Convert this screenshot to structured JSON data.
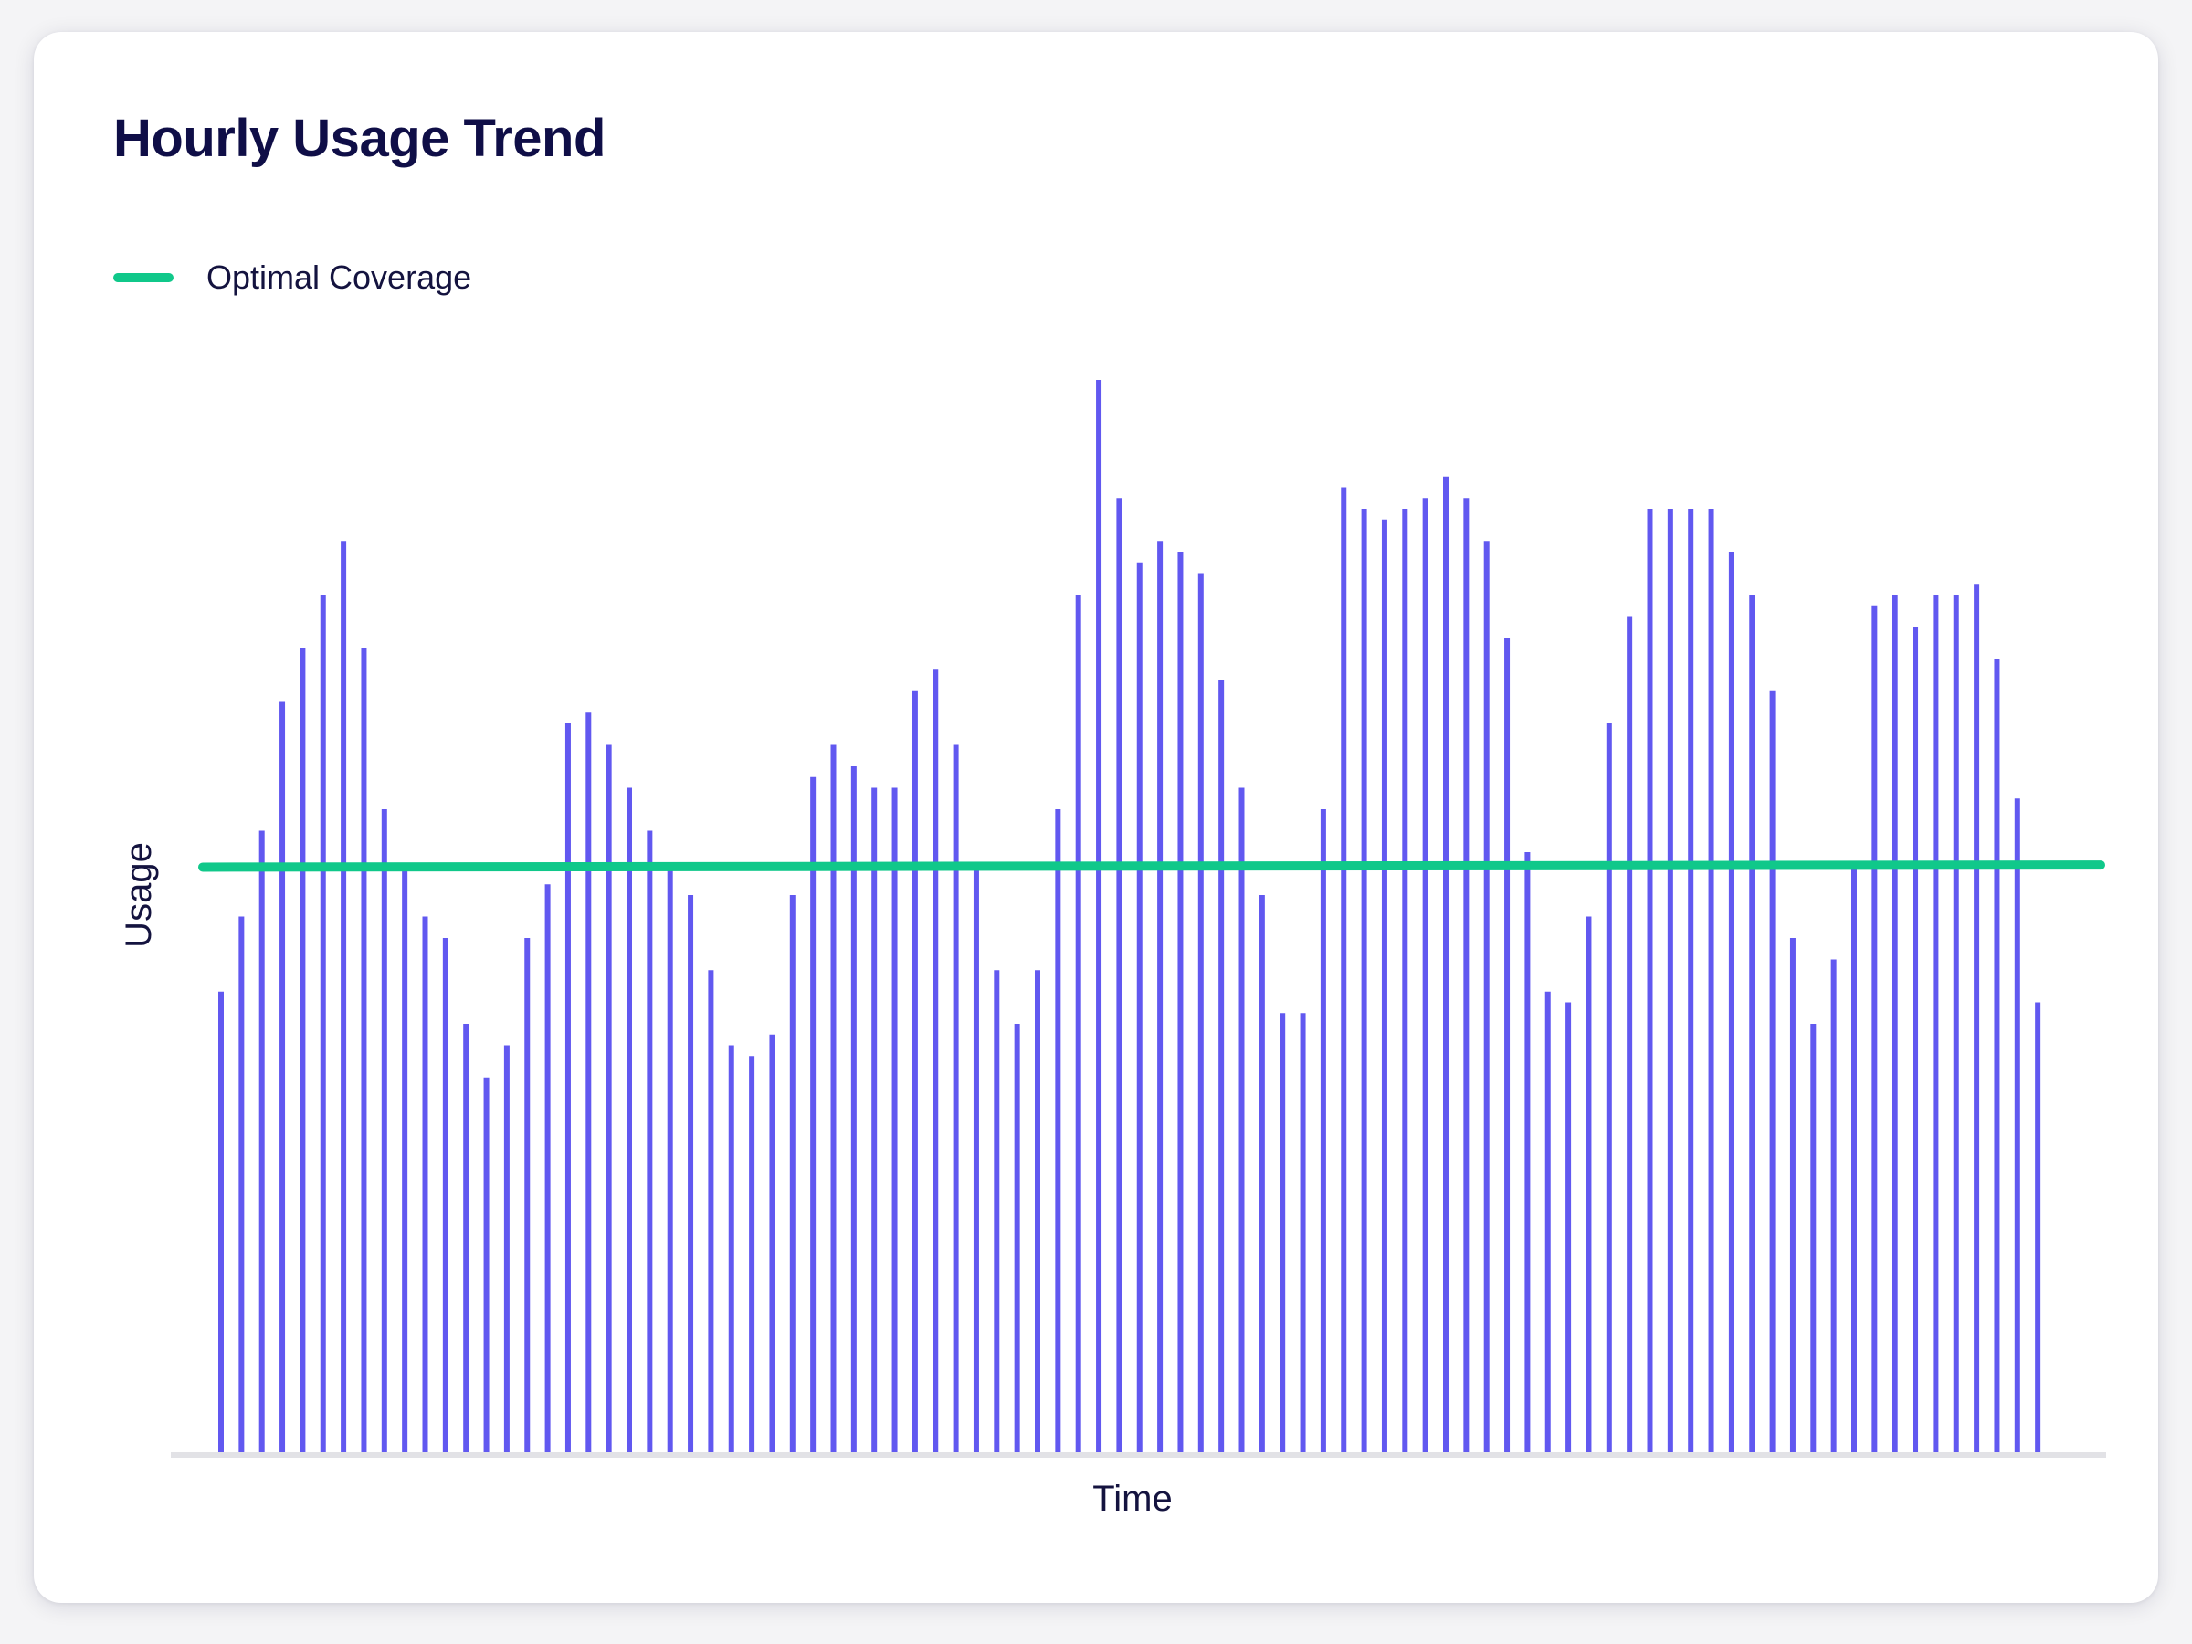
{
  "title": "Hourly Usage Trend",
  "legend": {
    "items": [
      {
        "label": "Optimal Coverage",
        "color": "#10c88a"
      }
    ]
  },
  "colors": {
    "bars": "#6158f0",
    "baseline": "#e2e2e6",
    "optimal": "#10c88a",
    "text": "#14133f"
  },
  "chart_data": {
    "type": "bar",
    "title": "Hourly Usage Trend",
    "xlabel": "Time",
    "ylabel": "Usage",
    "ylim": [
      0,
      100
    ],
    "grid": false,
    "legend_position": "top-left",
    "values": [
      43,
      50,
      58,
      70,
      75,
      80,
      85,
      75,
      60,
      55,
      50,
      48,
      40,
      35,
      38,
      48,
      53,
      68,
      69,
      66,
      62,
      58,
      55,
      52,
      45,
      38,
      37,
      39,
      52,
      63,
      66,
      64,
      62,
      62,
      71,
      73,
      66,
      55,
      45,
      40,
      45,
      60,
      80,
      100,
      89,
      83,
      85,
      84,
      82,
      72,
      62,
      52,
      41,
      41,
      60,
      90,
      88,
      87,
      88,
      89,
      91,
      89,
      85,
      76,
      56,
      43,
      42,
      50,
      68,
      78,
      88,
      88,
      88,
      88,
      84,
      80,
      71,
      48,
      40,
      46,
      55,
      79,
      80,
      77,
      80,
      80,
      81,
      74,
      61,
      42
    ],
    "series": [
      {
        "name": "Optimal Coverage",
        "type": "line",
        "values": [
          54.6,
          54.8
        ]
      }
    ]
  }
}
